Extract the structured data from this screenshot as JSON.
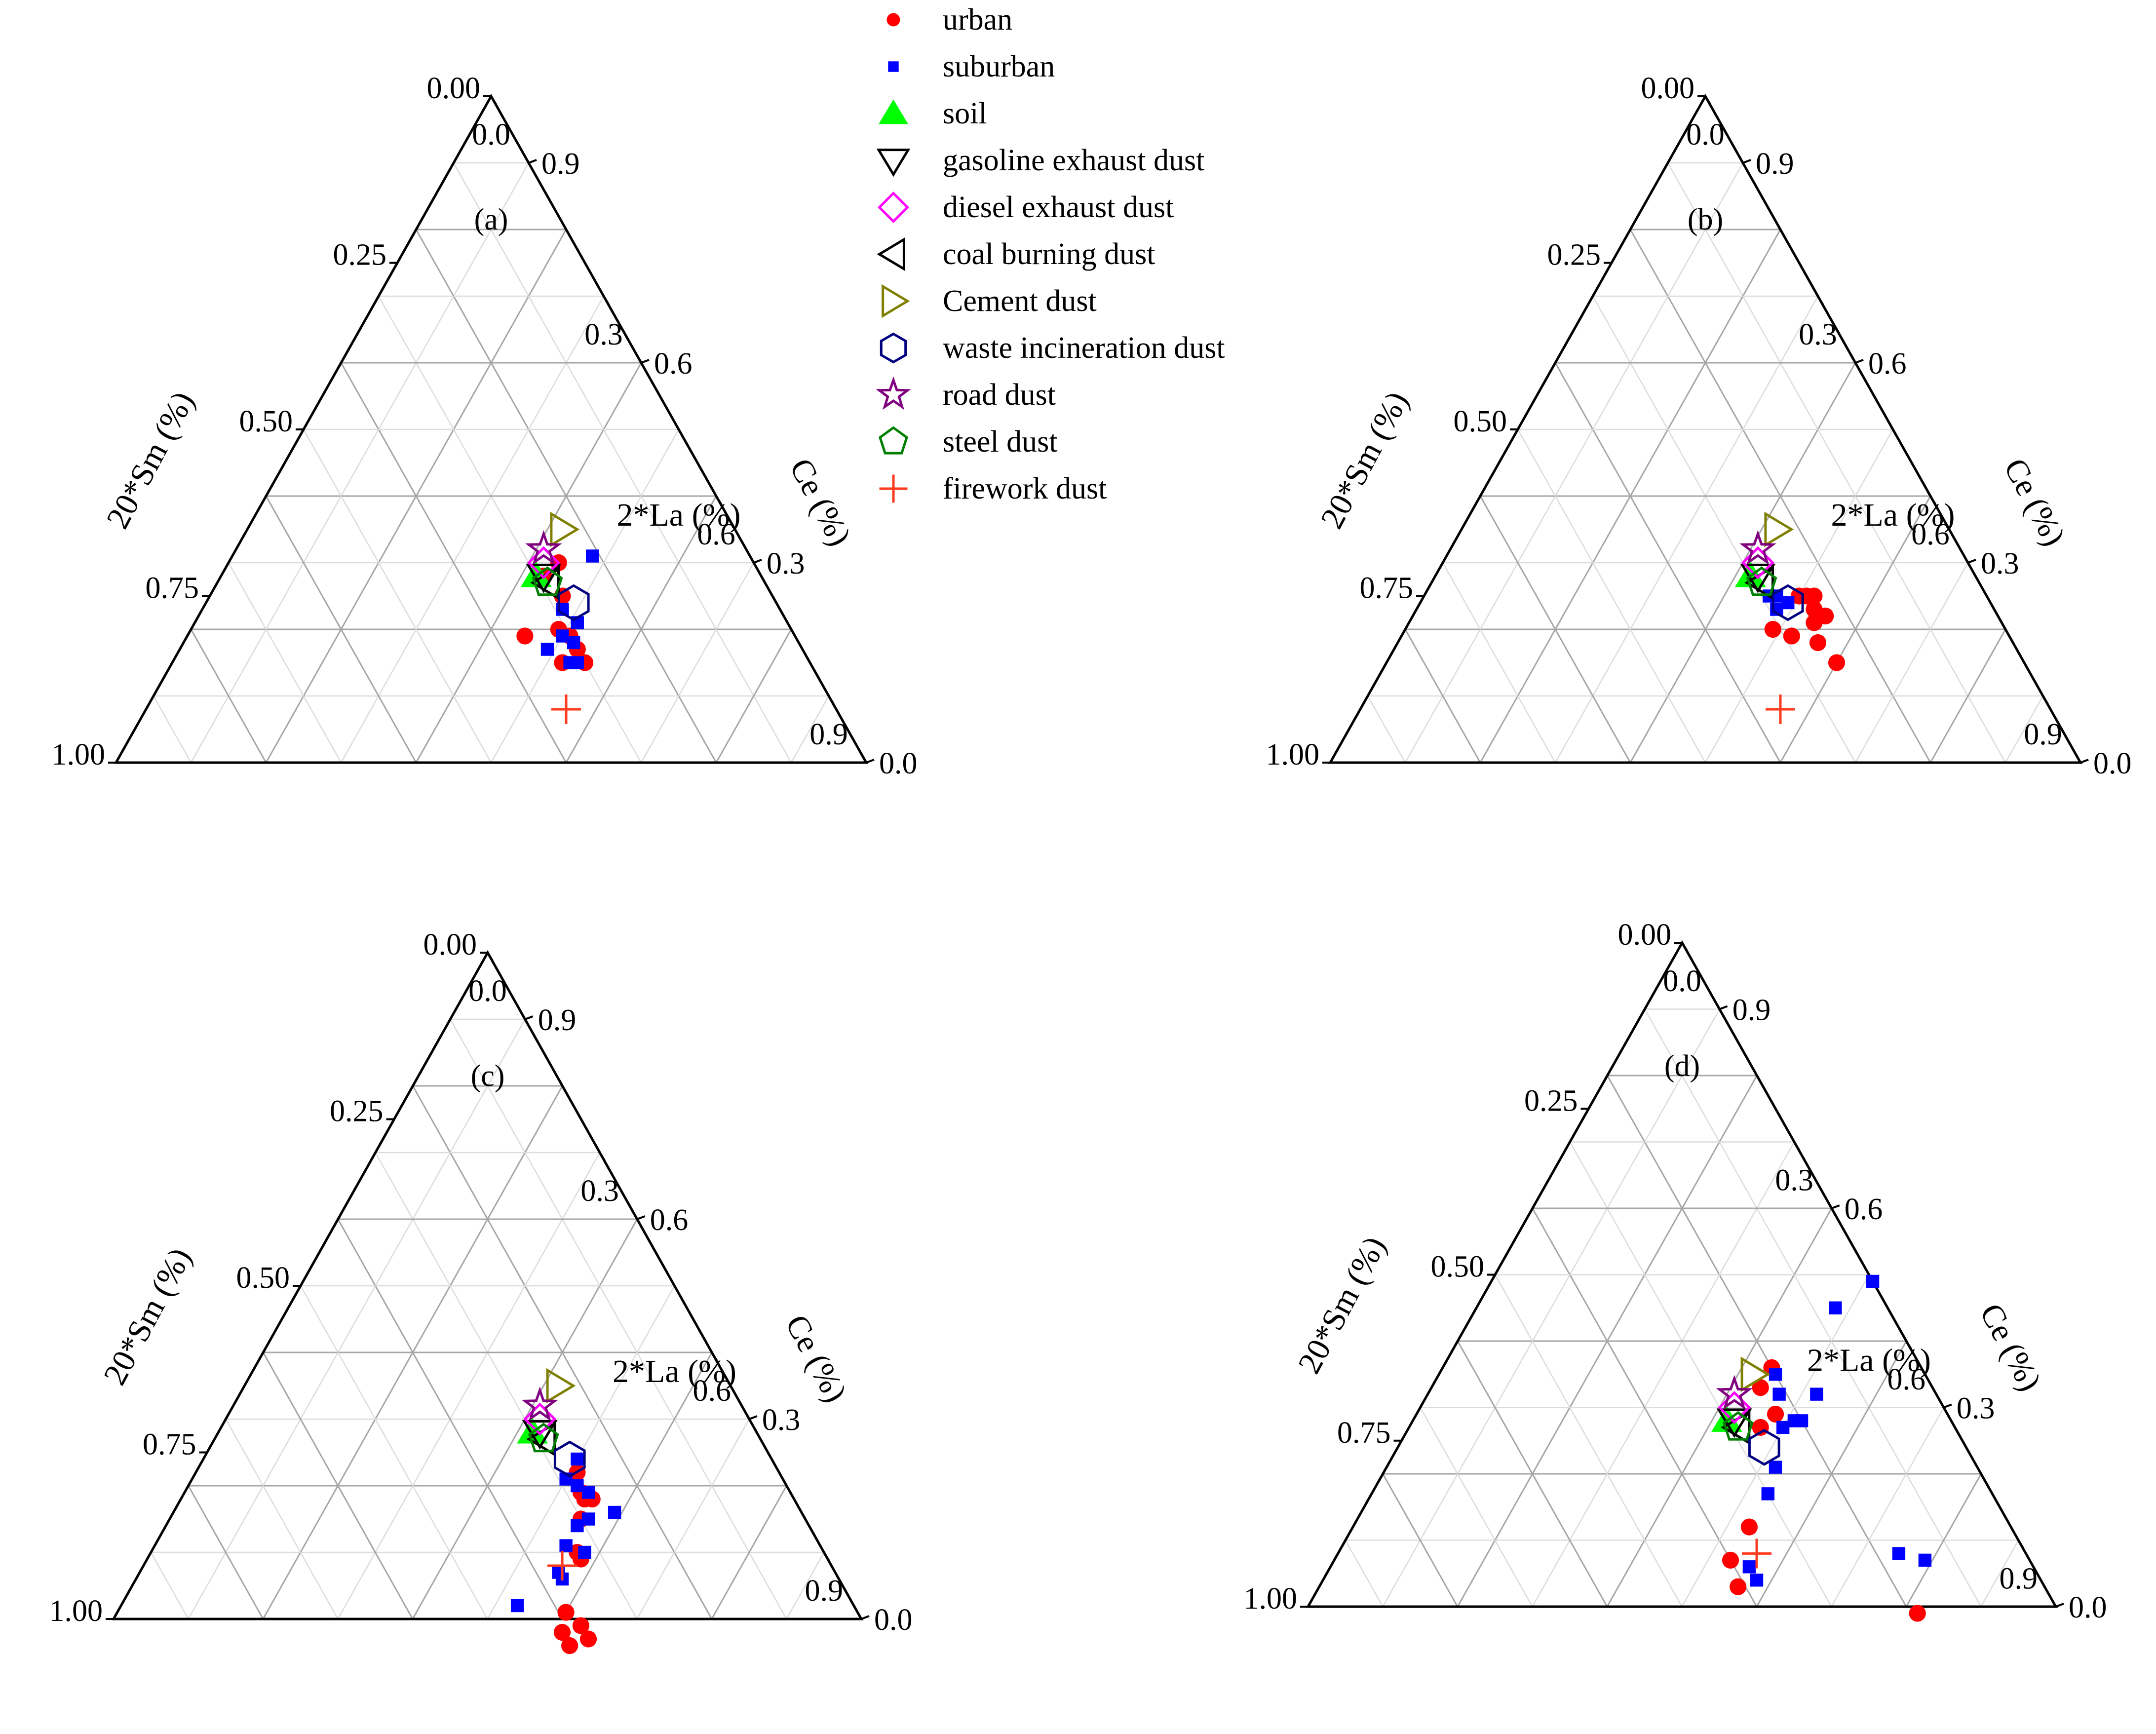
{
  "chart_data": {
    "type": "ternary",
    "axes": {
      "bottom": {
        "label": "2*La (%)",
        "ticks": [
          "0.0",
          "0.3",
          "0.6",
          "0.9"
        ]
      },
      "left": {
        "label": "20*Sm (%)",
        "ticks": [
          "0.00",
          "0.25",
          "0.50",
          "0.75",
          "1.00"
        ]
      },
      "right": {
        "label": "Ce (%)",
        "ticks": [
          "0.9",
          "0.6",
          "0.3",
          "0.0"
        ]
      }
    },
    "legend": [
      {
        "key": "urban",
        "label": "urban",
        "marker": "circle",
        "color": "#ff0000"
      },
      {
        "key": "suburban",
        "label": "suburban",
        "marker": "square",
        "color": "#0000ff"
      },
      {
        "key": "soil",
        "label": "soil",
        "marker": "triangle-up",
        "color": "#00ff00"
      },
      {
        "key": "gasoline",
        "label": "gasoline exhaust dust",
        "marker": "triangle-down",
        "color": "#000000"
      },
      {
        "key": "diesel",
        "label": "diesel exhaust dust",
        "marker": "diamond",
        "color": "#ff00ff"
      },
      {
        "key": "coal",
        "label": "coal burning dust",
        "marker": "triangle-left",
        "color": "#000000"
      },
      {
        "key": "cement",
        "label": "Cement dust",
        "marker": "triangle-right",
        "color": "#808000"
      },
      {
        "key": "waste",
        "label": "waste incineration dust",
        "marker": "hexagon",
        "color": "#000080"
      },
      {
        "key": "road",
        "label": "road dust",
        "marker": "star",
        "color": "#800080"
      },
      {
        "key": "steel",
        "label": "steel dust",
        "marker": "pentagon",
        "color": "#008000"
      },
      {
        "key": "firework",
        "label": "firework dust",
        "marker": "plus",
        "color": "#ff3b1f"
      }
    ],
    "sources": {
      "soil": {
        "La2": 0.42,
        "Sm20": 0.3
      },
      "gasoline": {
        "La2": 0.43,
        "Sm20": 0.29
      },
      "diesel": {
        "La2": 0.42,
        "Sm20": 0.28
      },
      "coal": {
        "La2": 0.44,
        "Sm20": 0.29
      },
      "cement": {
        "La2": 0.42,
        "Sm20": 0.23
      },
      "waste": {
        "La2": 0.49,
        "Sm20": 0.27
      },
      "road": {
        "La2": 0.41,
        "Sm20": 0.27
      },
      "steel": {
        "La2": 0.44,
        "Sm20": 0.29
      },
      "firework": {
        "La2": 0.56,
        "Sm20": 0.36
      }
    },
    "panels": [
      {
        "caption": "(a)",
        "urban": [
          [
            0.45,
            0.36
          ],
          [
            0.51,
            0.3
          ],
          [
            0.52,
            0.33
          ],
          [
            0.53,
            0.3
          ],
          [
            0.55,
            0.3
          ],
          [
            0.47,
            0.28
          ],
          [
            0.43,
            0.29
          ],
          [
            0.49,
            0.31
          ],
          [
            0.44,
            0.26
          ]
        ],
        "suburban": [
          [
            0.49,
            0.34
          ],
          [
            0.5,
            0.31
          ],
          [
            0.52,
            0.3
          ],
          [
            0.53,
            0.32
          ],
          [
            0.54,
            0.31
          ],
          [
            0.48,
            0.29
          ],
          [
            0.48,
            0.21
          ],
          [
            0.51,
            0.28
          ]
        ]
      },
      {
        "caption": "(b)",
        "urban": [
          [
            0.51,
            0.24
          ],
          [
            0.53,
            0.24
          ],
          [
            0.54,
            0.25
          ],
          [
            0.56,
            0.26
          ],
          [
            0.52,
            0.23
          ],
          [
            0.55,
            0.23
          ],
          [
            0.5,
            0.25
          ],
          [
            0.49,
            0.31
          ],
          [
            0.6,
            0.25
          ],
          [
            0.52,
            0.29
          ]
        ],
        "suburban": [
          [
            0.46,
            0.29
          ],
          [
            0.47,
            0.28
          ],
          [
            0.48,
            0.29
          ],
          [
            0.49,
            0.27
          ]
        ]
      },
      {
        "caption": "(c)",
        "urban": [
          [
            0.61,
            0.41
          ],
          [
            0.63,
            0.41
          ],
          [
            0.6,
            0.39
          ],
          [
            0.63,
            0.38
          ],
          [
            0.65,
            0.38
          ],
          [
            0.58,
            0.33
          ],
          [
            0.55,
            0.3
          ],
          [
            0.53,
            0.28
          ],
          [
            0.54,
            0.28
          ],
          [
            0.51,
            0.27
          ],
          [
            0.57,
            0.33
          ],
          [
            0.55,
            0.27
          ]
        ],
        "suburban": [
          [
            0.53,
            0.45
          ],
          [
            0.56,
            0.37
          ],
          [
            0.57,
            0.37
          ],
          [
            0.55,
            0.34
          ],
          [
            0.58,
            0.32
          ],
          [
            0.55,
            0.31
          ],
          [
            0.52,
            0.28
          ],
          [
            0.56,
            0.29
          ],
          [
            0.5,
            0.29
          ],
          [
            0.59,
            0.25
          ],
          [
            0.5,
            0.26
          ],
          [
            0.54,
            0.27
          ]
        ]
      },
      {
        "caption": "(d)",
        "urban": [
          [
            0.53,
            0.4
          ],
          [
            0.56,
            0.41
          ],
          [
            0.53,
            0.35
          ],
          [
            0.44,
            0.2
          ],
          [
            0.44,
            0.23
          ],
          [
            0.48,
            0.23
          ],
          [
            0.47,
            0.26
          ],
          [
            0.82,
            0.19
          ]
        ],
        "suburban": [
          [
            0.56,
            0.38
          ],
          [
            0.58,
            0.38
          ],
          [
            0.53,
            0.3
          ],
          [
            0.52,
            0.27
          ],
          [
            0.5,
            0.23
          ],
          [
            0.47,
            0.21
          ],
          [
            0.45,
            0.2
          ],
          [
            0.51,
            0.21
          ],
          [
            0.52,
            0.2
          ],
          [
            0.52,
            0.16
          ],
          [
            0.48,
            0.07
          ],
          [
            0.75,
            0.17
          ],
          [
            0.79,
            0.14
          ],
          [
            0.51,
            0.0
          ]
        ]
      }
    ]
  }
}
